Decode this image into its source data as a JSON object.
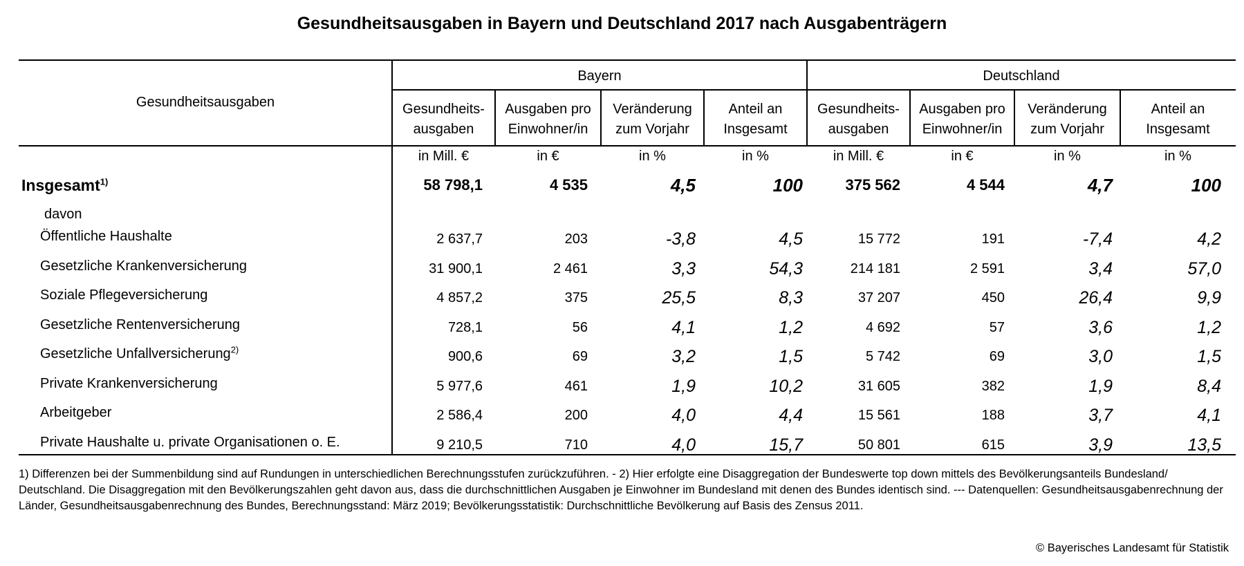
{
  "title": "Gesundheitsausgaben in Bayern und Deutschland 2017 nach Ausgabenträgern",
  "header": {
    "row_header": "Gesundheitsausgaben",
    "groups": [
      "Bayern",
      "Deutschland"
    ],
    "columns": [
      [
        "Gesundheits-",
        "ausgaben"
      ],
      [
        "Ausgaben pro",
        "Einwohner/in"
      ],
      [
        "Veränderung",
        "zum Vorjahr"
      ],
      [
        "Anteil an",
        "Insgesamt"
      ]
    ],
    "units": [
      "in Mill. €",
      "in €",
      "in %",
      "in %"
    ]
  },
  "total": {
    "label": "Insgesamt",
    "sup": "1)",
    "bayern": [
      "58 798,1",
      "4 535",
      "4,5",
      "100"
    ],
    "deutschland": [
      "375 562",
      "4 544",
      "4,7",
      "100"
    ]
  },
  "davon_label": "davon",
  "rows": [
    {
      "label": "Öffentliche Haushalte",
      "sup": "",
      "bayern": [
        "2 637,7",
        "203",
        "-3,8",
        "4,5"
      ],
      "deutschland": [
        "15 772",
        "191",
        "-7,4",
        "4,2"
      ]
    },
    {
      "label": "Gesetzliche Krankenversicherung",
      "sup": "",
      "bayern": [
        "31 900,1",
        "2 461",
        "3,3",
        "54,3"
      ],
      "deutschland": [
        "214 181",
        "2 591",
        "3,4",
        "57,0"
      ]
    },
    {
      "label": "Soziale Pflegeversicherung",
      "sup": "",
      "bayern": [
        "4 857,2",
        "375",
        "25,5",
        "8,3"
      ],
      "deutschland": [
        "37 207",
        "450",
        "26,4",
        "9,9"
      ]
    },
    {
      "label": "Gesetzliche Rentenversicherung",
      "sup": "",
      "bayern": [
        "728,1",
        "56",
        "4,1",
        "1,2"
      ],
      "deutschland": [
        "4 692",
        "57",
        "3,6",
        "1,2"
      ]
    },
    {
      "label": "Gesetzliche Unfallversicherung",
      "sup": "2)",
      "bayern": [
        "900,6",
        "69",
        "3,2",
        "1,5"
      ],
      "deutschland": [
        "5 742",
        "69",
        "3,0",
        "1,5"
      ]
    },
    {
      "label": "Private Krankenversicherung",
      "sup": "",
      "bayern": [
        "5 977,6",
        "461",
        "1,9",
        "10,2"
      ],
      "deutschland": [
        "31 605",
        "382",
        "1,9",
        "8,4"
      ]
    },
    {
      "label": "Arbeitgeber",
      "sup": "",
      "bayern": [
        "2 586,4",
        "200",
        "4,0",
        "4,4"
      ],
      "deutschland": [
        "15 561",
        "188",
        "3,7",
        "4,1"
      ]
    },
    {
      "label": "Private Haushalte u. private Organisationen o. E.",
      "sup": "",
      "bayern": [
        "9 210,5",
        "710",
        "4,0",
        "15,7"
      ],
      "deutschland": [
        "50 801",
        "615",
        "3,9",
        "13,5"
      ]
    }
  ],
  "footnote": "1) Differenzen bei der Summenbildung sind auf Rundungen in unterschiedlichen Berechnungsstufen zurückzuführen. - 2) Hier erfolgte eine Disaggregation der Bundeswerte top down mittels des Bevölkerungsanteils Bundesland/ Deutschland. Die Disaggregation mit den Bevölkerungszahlen geht davon aus, dass die durchschnittlichen Ausgaben je Einwohner im Bundesland mit denen des Bundes identisch sind. --- Datenquellen: Gesundheitsausgabenrechnung der Länder, Gesundheitsausgabenrechnung des Bundes, Berechnungsstand: März 2019; Bevölkerungsstatistik: Durchschnittliche Bevölkerung auf Basis des Zensus 2011.",
  "copyright": "© Bayerisches Landesamt für Statistik"
}
